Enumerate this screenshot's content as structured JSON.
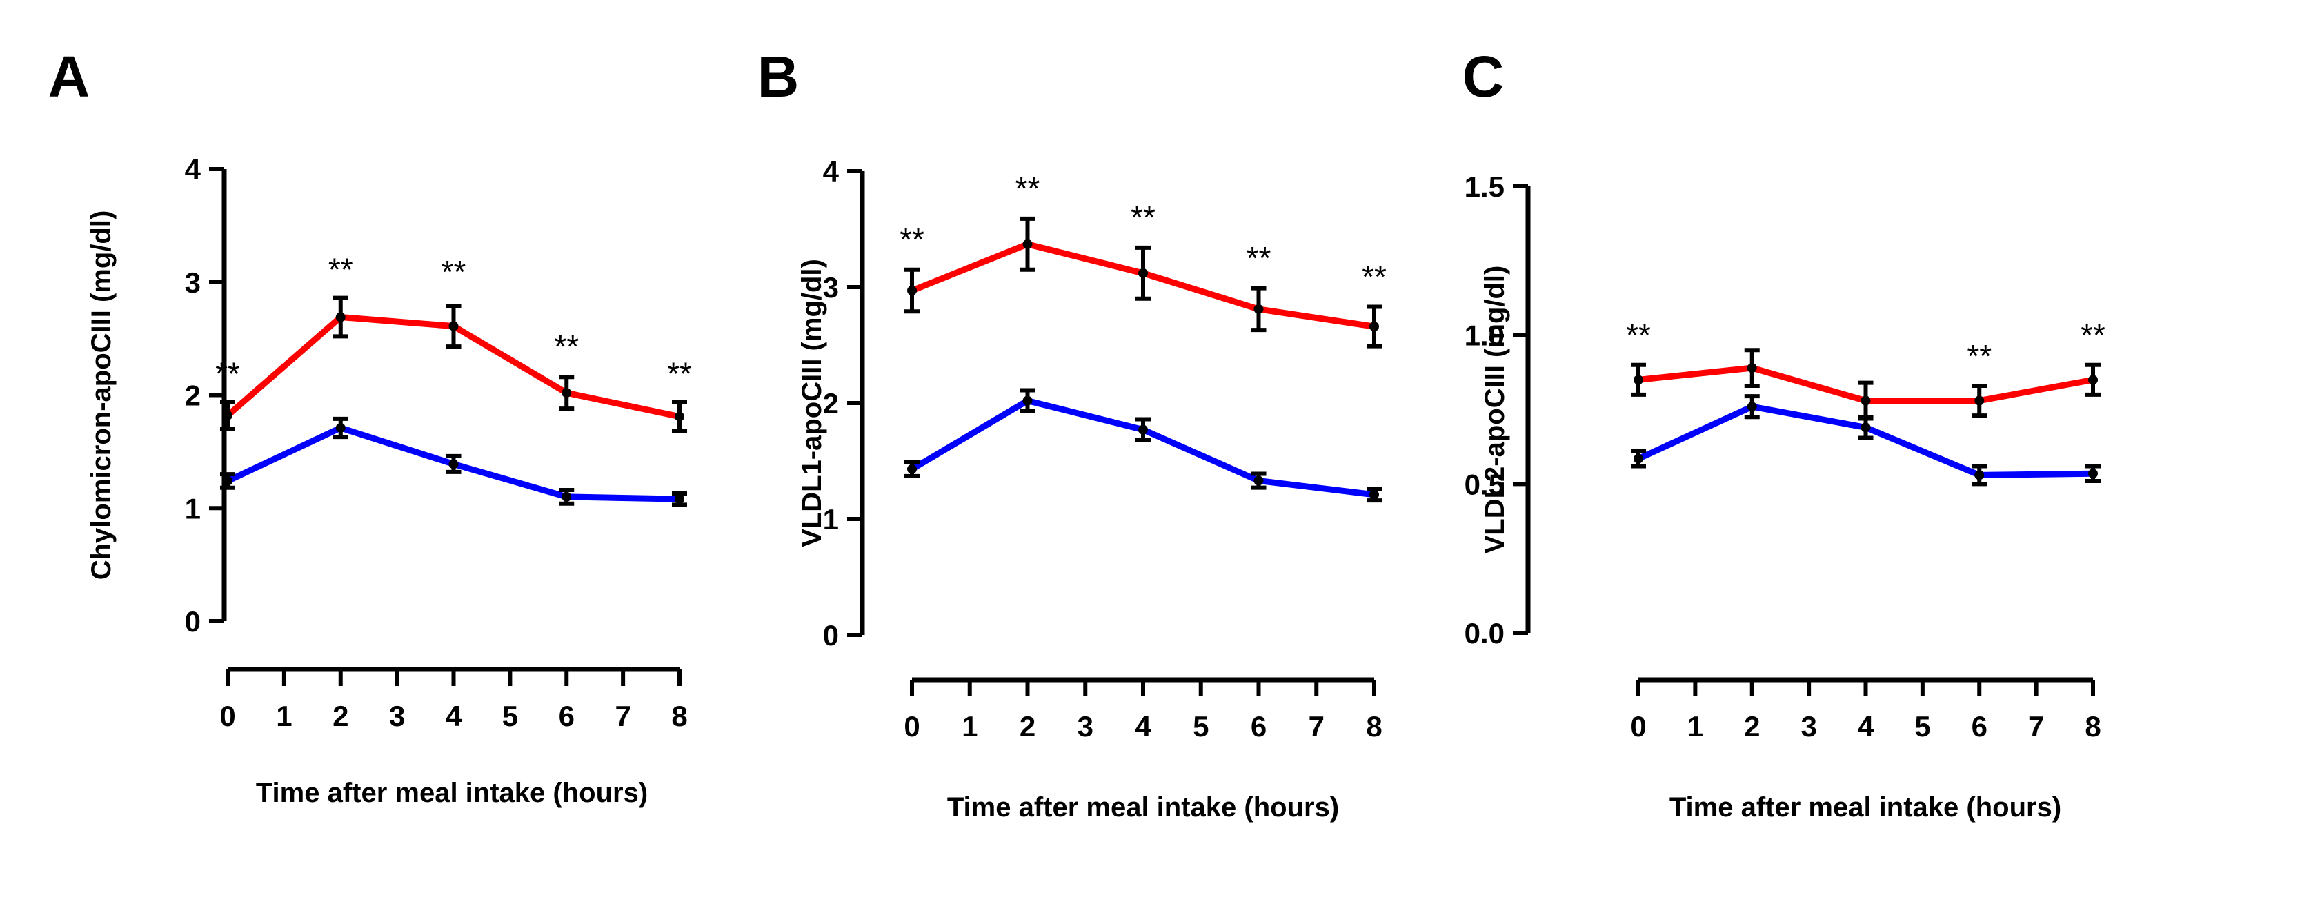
{
  "figure": {
    "colors": {
      "red": "#ff0000",
      "blue": "#0000ff",
      "axis": "#000000"
    },
    "chart_data": [
      {
        "type": "line",
        "panel": "A",
        "title": "",
        "xlabel": "Time after meal intake (hours)",
        "ylabel": "Chylomicron-apoCIII (mg/dl)",
        "xlim": [
          0,
          8
        ],
        "ylim": [
          0,
          4
        ],
        "x_ticks": [
          0,
          1,
          2,
          3,
          4,
          5,
          6,
          7,
          8
        ],
        "x_tick_labels": [
          "0",
          "1",
          "2",
          "3",
          "4",
          "5",
          "6",
          "7",
          "8"
        ],
        "y_ticks": [
          0,
          1,
          2,
          3,
          4
        ],
        "y_tick_labels": [
          "0",
          "1",
          "2",
          "3",
          "4"
        ],
        "x": [
          0,
          2,
          4,
          6,
          8
        ],
        "series": [
          {
            "name": "red",
            "color": "#ff0000",
            "values": [
              1.82,
              2.69,
              2.61,
              2.02,
              1.81
            ],
            "errors": [
              0.12,
              0.17,
              0.18,
              0.14,
              0.13
            ]
          },
          {
            "name": "blue",
            "color": "#0000ff",
            "values": [
              1.24,
              1.71,
              1.39,
              1.1,
              1.08
            ],
            "errors": [
              0.06,
              0.08,
              0.07,
              0.06,
              0.05
            ]
          }
        ],
        "annotations": [
          {
            "x": 0,
            "y": 2.19,
            "text": "**"
          },
          {
            "x": 2,
            "y": 3.11,
            "text": "**"
          },
          {
            "x": 4,
            "y": 3.09,
            "text": "**"
          },
          {
            "x": 6,
            "y": 2.43,
            "text": "**"
          },
          {
            "x": 8,
            "y": 2.19,
            "text": "**"
          }
        ]
      },
      {
        "type": "line",
        "panel": "B",
        "title": "",
        "xlabel": "Time after meal intake (hours)",
        "ylabel": "VLDL1-apoCIII (mg/dl)",
        "xlim": [
          0,
          8
        ],
        "ylim": [
          0,
          4
        ],
        "x_ticks": [
          0,
          1,
          2,
          3,
          4,
          5,
          6,
          7,
          8
        ],
        "x_tick_labels": [
          "0",
          "1",
          "2",
          "3",
          "4",
          "5",
          "6",
          "7",
          "8"
        ],
        "y_ticks": [
          0,
          1,
          2,
          3,
          4
        ],
        "y_tick_labels": [
          "0",
          "1",
          "2",
          "3",
          "4"
        ],
        "x": [
          0,
          2,
          4,
          6,
          8
        ],
        "series": [
          {
            "name": "red",
            "color": "#ff0000",
            "values": [
              2.97,
              3.37,
              3.12,
              2.81,
              2.66
            ],
            "errors": [
              0.18,
              0.22,
              0.22,
              0.18,
              0.17
            ]
          },
          {
            "name": "blue",
            "color": "#0000ff",
            "values": [
              1.43,
              2.02,
              1.77,
              1.33,
              1.21
            ],
            "errors": [
              0.06,
              0.09,
              0.09,
              0.06,
              0.05
            ]
          }
        ],
        "annotations": [
          {
            "x": 0,
            "y": 3.41,
            "text": "**"
          },
          {
            "x": 2,
            "y": 3.85,
            "text": "**"
          },
          {
            "x": 4,
            "y": 3.6,
            "text": "**"
          },
          {
            "x": 6,
            "y": 3.25,
            "text": "**"
          },
          {
            "x": 8,
            "y": 3.09,
            "text": "**"
          }
        ]
      },
      {
        "type": "line",
        "panel": "C",
        "title": "",
        "xlabel": "Time after meal intake (hours)",
        "ylabel": "VLDL2-apoCIII (mg/dl)",
        "xlim": [
          0,
          8
        ],
        "ylim": [
          0,
          1.5
        ],
        "x_ticks": [
          0,
          1,
          2,
          3,
          4,
          5,
          6,
          7,
          8
        ],
        "x_tick_labels": [
          "0",
          "1",
          "2",
          "3",
          "4",
          "5",
          "6",
          "7",
          "8"
        ],
        "y_ticks": [
          0,
          0.5,
          1.0,
          1.5
        ],
        "y_tick_labels": [
          "0.0",
          "0.5",
          "1.0",
          "1.5"
        ],
        "x": [
          0,
          2,
          4,
          6,
          8
        ],
        "series": [
          {
            "name": "red",
            "color": "#ff0000",
            "values": [
              0.85,
              0.89,
              0.78,
              0.78,
              0.85
            ],
            "errors": [
              0.05,
              0.06,
              0.06,
              0.05,
              0.05
            ]
          },
          {
            "name": "blue",
            "color": "#0000ff",
            "values": [
              0.585,
              0.76,
              0.69,
              0.53,
              0.535
            ],
            "errors": [
              0.025,
              0.035,
              0.035,
              0.03,
              0.025
            ]
          }
        ],
        "annotations": [
          {
            "x": 0,
            "y": 1.0,
            "text": "**"
          },
          {
            "x": 6,
            "y": 0.93,
            "text": "**"
          },
          {
            "x": 8,
            "y": 1.0,
            "text": "**"
          }
        ]
      }
    ]
  }
}
